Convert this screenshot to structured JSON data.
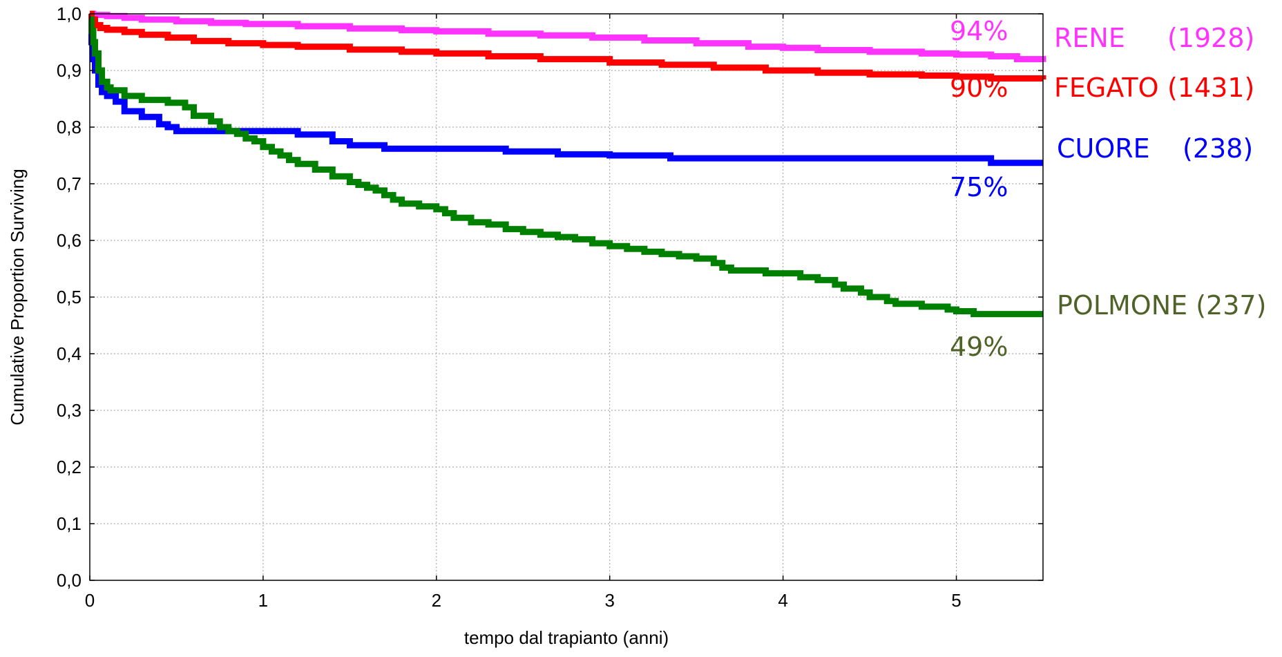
{
  "chart_data": {
    "type": "line",
    "step": true,
    "xlabel": "tempo dal trapianto (anni)",
    "ylabel": "Cumulative Proportion Surviving",
    "xlim": [
      0,
      5.5
    ],
    "ylim": [
      0.0,
      1.0
    ],
    "x_ticks": [
      0,
      1,
      2,
      3,
      4,
      5
    ],
    "x_tick_labels": [
      "0",
      "1",
      "2",
      "3",
      "4",
      "5"
    ],
    "y_ticks": [
      0.0,
      0.1,
      0.2,
      0.3,
      0.4,
      0.5,
      0.6,
      0.7,
      0.8,
      0.9,
      1.0
    ],
    "y_tick_labels": [
      "0,0",
      "0,1",
      "0,2",
      "0,3",
      "0,4",
      "0,5",
      "0,6",
      "0,7",
      "0,8",
      "0,9",
      "1,0"
    ],
    "grid": true,
    "series": [
      {
        "name": "RENE (1928)",
        "label_name": "RENE",
        "label_count": "(1928)",
        "percent_label": "94%",
        "color": "#ff33ff",
        "label_color": "#ff33ff",
        "x": [
          0,
          0.02,
          0.1,
          0.2,
          0.3,
          0.5,
          0.7,
          0.9,
          1.2,
          1.5,
          1.8,
          2.0,
          2.3,
          2.6,
          2.9,
          3.2,
          3.5,
          3.8,
          4.0,
          4.2,
          4.5,
          4.8,
          5.0,
          5.2,
          5.35,
          5.5
        ],
        "y": [
          1.0,
          0.998,
          0.996,
          0.993,
          0.99,
          0.987,
          0.984,
          0.982,
          0.978,
          0.974,
          0.971,
          0.969,
          0.965,
          0.962,
          0.958,
          0.953,
          0.948,
          0.942,
          0.94,
          0.936,
          0.933,
          0.93,
          0.928,
          0.925,
          0.92,
          0.915
        ]
      },
      {
        "name": "FEGATO (1431)",
        "label_name": "FEGATO",
        "label_count": "(1431)",
        "percent_label": "90%",
        "color": "#ff0000",
        "label_color": "#ff0000",
        "x": [
          0,
          0.01,
          0.03,
          0.06,
          0.1,
          0.2,
          0.3,
          0.45,
          0.6,
          0.8,
          1.0,
          1.2,
          1.5,
          1.8,
          2.0,
          2.3,
          2.6,
          3.0,
          3.3,
          3.6,
          3.9,
          4.2,
          4.5,
          4.8,
          5.0,
          5.2,
          5.5
        ],
        "y": [
          1.0,
          0.99,
          0.98,
          0.975,
          0.972,
          0.968,
          0.963,
          0.958,
          0.952,
          0.948,
          0.945,
          0.942,
          0.937,
          0.933,
          0.93,
          0.925,
          0.92,
          0.914,
          0.91,
          0.905,
          0.9,
          0.896,
          0.893,
          0.891,
          0.889,
          0.886,
          0.884
        ]
      },
      {
        "name": "CUORE (238)",
        "label_name": "CUORE",
        "label_count": "(238)",
        "percent_label": "75%",
        "color": "#0000ff",
        "label_color": "#0000ff",
        "x": [
          0,
          0.01,
          0.02,
          0.03,
          0.05,
          0.07,
          0.1,
          0.15,
          0.2,
          0.3,
          0.4,
          0.45,
          0.5,
          1.0,
          1.2,
          1.4,
          1.5,
          1.7,
          2.0,
          2.4,
          2.7,
          3.0,
          3.35,
          4.0,
          5.0,
          5.2,
          5.5
        ],
        "y": [
          0.97,
          0.95,
          0.92,
          0.9,
          0.875,
          0.862,
          0.855,
          0.845,
          0.828,
          0.818,
          0.805,
          0.8,
          0.793,
          0.793,
          0.787,
          0.775,
          0.768,
          0.762,
          0.762,
          0.757,
          0.752,
          0.75,
          0.745,
          0.745,
          0.745,
          0.737,
          0.737
        ]
      },
      {
        "name": "POLMONE (237)",
        "label_name": "POLMONE",
        "label_count": "(237)",
        "percent_label": "49%",
        "color": "#008000",
        "label_color": "#4f6228",
        "x": [
          0,
          0.01,
          0.02,
          0.03,
          0.05,
          0.07,
          0.1,
          0.12,
          0.2,
          0.3,
          0.45,
          0.55,
          0.6,
          0.7,
          0.75,
          0.8,
          0.85,
          0.9,
          0.95,
          1.0,
          1.05,
          1.1,
          1.15,
          1.2,
          1.3,
          1.4,
          1.5,
          1.55,
          1.6,
          1.65,
          1.7,
          1.75,
          1.8,
          1.9,
          2.0,
          2.05,
          2.1,
          2.2,
          2.3,
          2.4,
          2.5,
          2.6,
          2.7,
          2.8,
          2.9,
          3.0,
          3.1,
          3.2,
          3.3,
          3.4,
          3.5,
          3.6,
          3.65,
          3.7,
          3.9,
          4.1,
          4.2,
          4.3,
          4.35,
          4.45,
          4.5,
          4.6,
          4.65,
          4.8,
          4.95,
          5.0,
          5.1,
          5.2,
          5.5
        ],
        "y": [
          0.99,
          0.97,
          0.95,
          0.93,
          0.9,
          0.88,
          0.87,
          0.865,
          0.855,
          0.848,
          0.843,
          0.835,
          0.82,
          0.81,
          0.8,
          0.793,
          0.788,
          0.78,
          0.775,
          0.765,
          0.757,
          0.75,
          0.742,
          0.735,
          0.725,
          0.713,
          0.703,
          0.698,
          0.693,
          0.688,
          0.68,
          0.672,
          0.665,
          0.66,
          0.655,
          0.648,
          0.64,
          0.632,
          0.628,
          0.62,
          0.615,
          0.61,
          0.606,
          0.602,
          0.595,
          0.59,
          0.585,
          0.58,
          0.576,
          0.572,
          0.568,
          0.56,
          0.552,
          0.547,
          0.542,
          0.535,
          0.53,
          0.522,
          0.515,
          0.508,
          0.5,
          0.493,
          0.488,
          0.483,
          0.478,
          0.475,
          0.47,
          0.47,
          0.47
        ]
      }
    ]
  }
}
